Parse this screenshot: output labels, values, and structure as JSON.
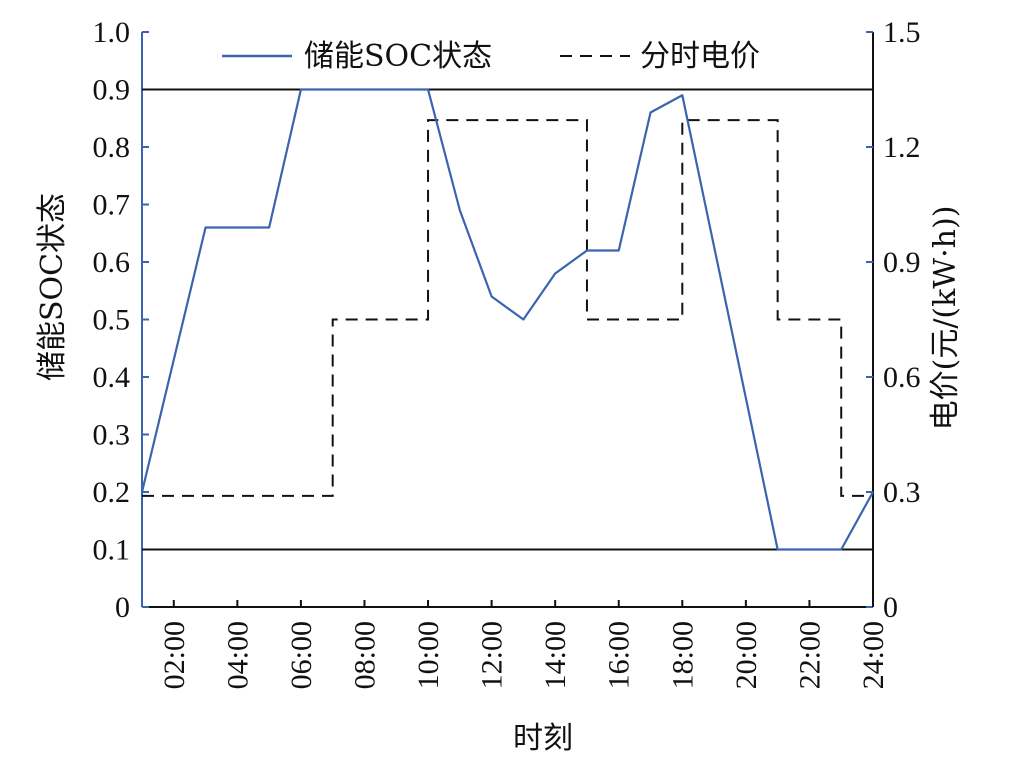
{
  "chart_data": {
    "type": "line",
    "title": "",
    "xlabel": "时刻",
    "ylabel_left": "储能SOC状态",
    "ylabel_right": "电价(元/(kW·h))",
    "x_tick_labels": [
      "02:00",
      "04:00",
      "06:00",
      "08:00",
      "10:00",
      "12:00",
      "14:00",
      "16:00",
      "18:00",
      "20:00",
      "22:00",
      "24:00"
    ],
    "x_ticks_hours": [
      2,
      4,
      6,
      8,
      10,
      12,
      14,
      16,
      18,
      20,
      22,
      24
    ],
    "xlim_hours": [
      1,
      24
    ],
    "ylim_left": [
      0,
      1.0
    ],
    "y_left_tick_labels": [
      "0",
      "0.1",
      "0.2",
      "0.3",
      "0.4",
      "0.5",
      "0.6",
      "0.7",
      "0.8",
      "0.9",
      "1.0"
    ],
    "y_left_ticks": [
      0,
      0.1,
      0.2,
      0.3,
      0.4,
      0.5,
      0.6,
      0.7,
      0.8,
      0.9,
      1.0
    ],
    "ylim_right": [
      0,
      1.5
    ],
    "y_right_tick_labels": [
      "0",
      "0.3",
      "0.6",
      "0.9",
      "1.2",
      "1.5"
    ],
    "y_right_ticks": [
      0,
      0.3,
      0.6,
      0.9,
      1.2,
      1.5
    ],
    "reference_lines_left": [
      0.9,
      0.1
    ],
    "legend_position": "top-center",
    "grid": false,
    "series": [
      {
        "name": "储能SOC状态",
        "axis": "left",
        "style": "solid",
        "color": "#3a64b0",
        "points": [
          [
            1,
            0.2
          ],
          [
            3,
            0.66
          ],
          [
            5,
            0.66
          ],
          [
            6,
            0.9
          ],
          [
            10,
            0.9
          ],
          [
            11,
            0.69
          ],
          [
            12,
            0.54
          ],
          [
            13,
            0.5
          ],
          [
            14,
            0.58
          ],
          [
            15,
            0.62
          ],
          [
            16,
            0.62
          ],
          [
            17,
            0.86
          ],
          [
            18,
            0.89
          ],
          [
            21,
            0.1
          ],
          [
            23,
            0.1
          ],
          [
            24,
            0.2
          ]
        ]
      },
      {
        "name": "分时电价",
        "axis": "right",
        "style": "dashed",
        "color": "#111111",
        "steps": [
          {
            "from": 1,
            "to": 7,
            "price": 0.29
          },
          {
            "from": 7,
            "to": 10,
            "price": 0.75
          },
          {
            "from": 10,
            "to": 15,
            "price": 1.27
          },
          {
            "from": 15,
            "to": 18,
            "price": 0.75
          },
          {
            "from": 18,
            "to": 21,
            "price": 1.27
          },
          {
            "from": 21,
            "to": 23,
            "price": 0.75
          },
          {
            "from": 23,
            "to": 24,
            "price": 0.29
          }
        ]
      }
    ]
  }
}
